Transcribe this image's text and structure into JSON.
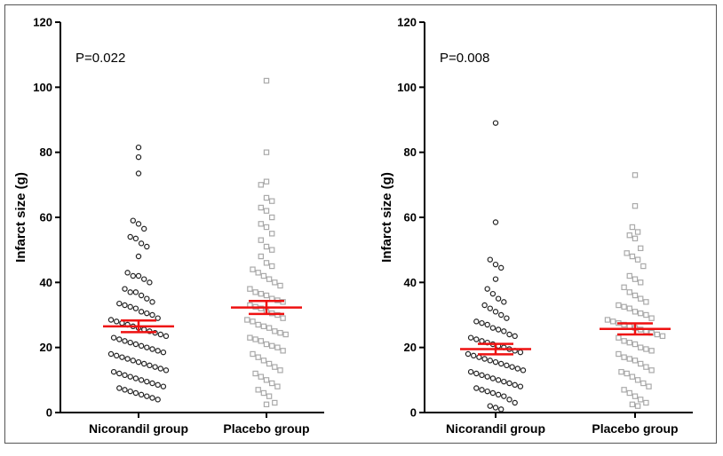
{
  "chart_data": [
    {
      "type": "scatter",
      "subtype": "dot-plot",
      "annotation": "P=0.022",
      "ylabel": "Infarct size (g)",
      "ylim": [
        0,
        120
      ],
      "yticks": [
        0,
        20,
        40,
        60,
        80,
        100,
        120
      ],
      "grid": false,
      "categories": [
        "Nicorandil group",
        "Placebo group"
      ],
      "series": [
        {
          "name": "Nicorandil group",
          "marker": "circle",
          "color": "#222222",
          "mean": 26.5,
          "sem": 1.8,
          "values": [
            81.5,
            78.5,
            73.5,
            59,
            58,
            56.5,
            54,
            53.5,
            52,
            51,
            48,
            43,
            42,
            42,
            41,
            40,
            38,
            37,
            37,
            36,
            35,
            34,
            33.5,
            33,
            32.5,
            32,
            31,
            30.5,
            30,
            29,
            28.5,
            28,
            27.5,
            27,
            26.5,
            26,
            25.5,
            25,
            24.5,
            24,
            23.5,
            23,
            22.5,
            22,
            21.5,
            21,
            20.5,
            20,
            19.5,
            19,
            18.5,
            18,
            17.5,
            17,
            16.5,
            16,
            15.5,
            15,
            14.5,
            14,
            13.5,
            13,
            12.5,
            12,
            11.5,
            11,
            10.5,
            10,
            9.5,
            9,
            8.5,
            8,
            7.5,
            7,
            6.5,
            6,
            5.5,
            5,
            4.5,
            4
          ]
        },
        {
          "name": "Placebo group",
          "marker": "square",
          "color": "#aaaaaa",
          "mean": 32.3,
          "sem": 2.0,
          "values": [
            102,
            80,
            71,
            70,
            66,
            65,
            63,
            62,
            60,
            58,
            57,
            55,
            53,
            51,
            50,
            48,
            46,
            45,
            44,
            43,
            42,
            41,
            40,
            39,
            38,
            37,
            36.5,
            36,
            35,
            34.5,
            34,
            33,
            32.5,
            32,
            31,
            30.5,
            30,
            29,
            28.5,
            28,
            27,
            26.5,
            26,
            25,
            24.5,
            24,
            23,
            22.5,
            22,
            21,
            20.5,
            20,
            19,
            18,
            17,
            16,
            15,
            14,
            13,
            12,
            11,
            10,
            9,
            8,
            7,
            6,
            5,
            3,
            2.5
          ]
        }
      ]
    },
    {
      "type": "scatter",
      "subtype": "dot-plot",
      "annotation": "P=0.008",
      "ylabel": "Infarct size (g)",
      "ylim": [
        0,
        120
      ],
      "yticks": [
        0,
        20,
        40,
        60,
        80,
        100,
        120
      ],
      "grid": false,
      "categories": [
        "Nicorandil group",
        "Placebo group"
      ],
      "series": [
        {
          "name": "Nicorandil group",
          "marker": "circle",
          "color": "#222222",
          "mean": 19.5,
          "sem": 1.6,
          "values": [
            89,
            58.5,
            47,
            45.5,
            44.5,
            41,
            38,
            36.5,
            35,
            34,
            33,
            32,
            31,
            30,
            29,
            28,
            27.5,
            27,
            26,
            25.5,
            25,
            24,
            23.5,
            23,
            22.5,
            22,
            21.5,
            21,
            20.5,
            20,
            19.5,
            19,
            18.5,
            18,
            17.5,
            17,
            16.5,
            16,
            15.5,
            15,
            14.5,
            14,
            13.5,
            13,
            12.5,
            12,
            11.5,
            11,
            10.5,
            10,
            9.5,
            9,
            8.5,
            8,
            7.5,
            7,
            6.5,
            6,
            5.5,
            5,
            4,
            3,
            2,
            1.5,
            1
          ]
        },
        {
          "name": "Placebo group",
          "marker": "square",
          "color": "#aaaaaa",
          "mean": 25.7,
          "sem": 1.7,
          "values": [
            73,
            63.5,
            57,
            55.5,
            54.5,
            53.5,
            50.5,
            49,
            48,
            47,
            45,
            42,
            41,
            40,
            38.5,
            37,
            36,
            35,
            34,
            33,
            32.5,
            32,
            31,
            30.5,
            30,
            29,
            28.5,
            28,
            27.5,
            27,
            26.5,
            26,
            25.5,
            25,
            24.5,
            24,
            23.5,
            23,
            22,
            21.5,
            21,
            20,
            19.5,
            19,
            18,
            17,
            16.5,
            16,
            15,
            14,
            13,
            12.5,
            12,
            11,
            10,
            9,
            8,
            7,
            6,
            5,
            4,
            3,
            2.5,
            2
          ]
        }
      ]
    }
  ]
}
